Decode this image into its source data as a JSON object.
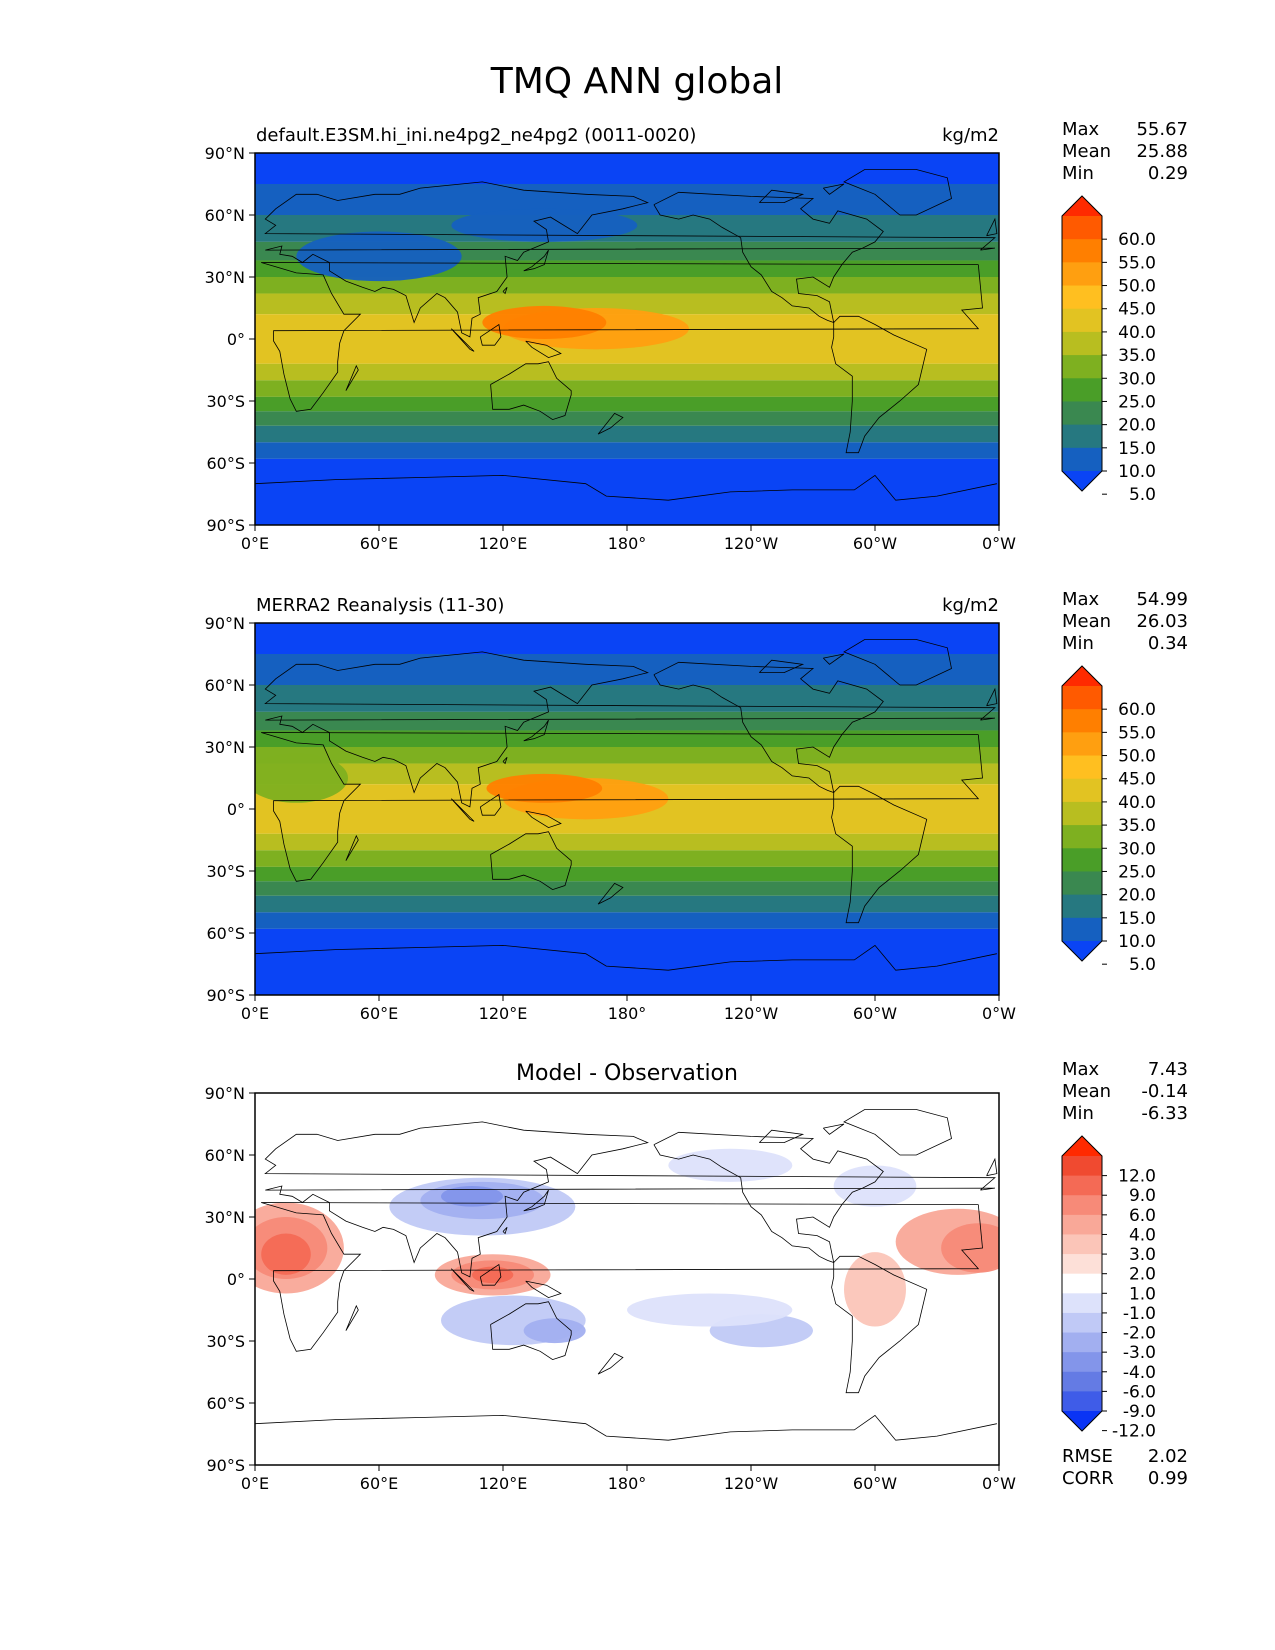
{
  "figure": {
    "title": "TMQ ANN global"
  },
  "axes": {
    "lat_ticks": [
      "90°N",
      "60°N",
      "30°N",
      "0°",
      "30°S",
      "60°S",
      "90°S"
    ],
    "lon_ticks": [
      "0°E",
      "60°E",
      "120°E",
      "180°",
      "120°W",
      "60°W",
      "0°W"
    ]
  },
  "panels": [
    {
      "id": "model",
      "title_left": "default.E3SM.hi_ini.ne4pg2_ne4pg2 (0011-0020)",
      "title_center": "",
      "units": "kg/m2",
      "stats": [
        {
          "label": "Max",
          "value": "55.67"
        },
        {
          "label": "Mean",
          "value": "25.88"
        },
        {
          "label": "Min",
          "value": "0.29"
        }
      ],
      "colorbar": {
        "levels": [
          "60.0",
          "55.0",
          "50.0",
          "45.0",
          "40.0",
          "35.0",
          "30.0",
          "25.0",
          "20.0",
          "15.0",
          "10.0",
          "5.0"
        ],
        "colors": [
          "#ff2a00",
          "#ff5a00",
          "#ff7f00",
          "#ff9f10",
          "#ffbf20",
          "#e2c322",
          "#b8be20",
          "#7eb020",
          "#4a9e28",
          "#3a8850",
          "#267880",
          "#1560c0",
          "#0a44f5"
        ]
      },
      "field": [
        {
          "lat_min": 75,
          "lat_max": 90,
          "level": 12
        },
        {
          "lat_min": 60,
          "lat_max": 75,
          "level": 11
        },
        {
          "lat_min": 47,
          "lat_max": 60,
          "level": 10
        },
        {
          "lat_min": 38,
          "lat_max": 47,
          "level": 9
        },
        {
          "lat_min": 30,
          "lat_max": 38,
          "level": 8
        },
        {
          "lat_min": 22,
          "lat_max": 30,
          "level": 7
        },
        {
          "lat_min": 12,
          "lat_max": 22,
          "level": 6
        },
        {
          "lat_min": -12,
          "lat_max": 12,
          "level": 5
        },
        {
          "lat_min": -20,
          "lat_max": -12,
          "level": 6
        },
        {
          "lat_min": -28,
          "lat_max": -20,
          "level": 7
        },
        {
          "lat_min": -35,
          "lat_max": -28,
          "level": 8
        },
        {
          "lat_min": -42,
          "lat_max": -35,
          "level": 9
        },
        {
          "lat_min": -50,
          "lat_max": -42,
          "level": 10
        },
        {
          "lat_min": -58,
          "lat_max": -50,
          "level": 11
        },
        {
          "lat_min": -90,
          "lat_max": -58,
          "level": 12
        }
      ],
      "features": [
        {
          "lon": 165,
          "lat": 5,
          "rx": 45,
          "ry": 10,
          "level": 3
        },
        {
          "lon": 140,
          "lat": 8,
          "rx": 30,
          "ry": 8,
          "level": 2
        },
        {
          "lon": 60,
          "lat": 40,
          "rx": 40,
          "ry": 12,
          "level": 11
        },
        {
          "lon": 140,
          "lat": 55,
          "rx": 45,
          "ry": 8,
          "level": 11
        }
      ]
    },
    {
      "id": "obs",
      "title_left": "MERRA2 Reanalysis (11-30)",
      "title_center": "",
      "units": "kg/m2",
      "stats": [
        {
          "label": "Max",
          "value": "54.99"
        },
        {
          "label": "Mean",
          "value": "26.03"
        },
        {
          "label": "Min",
          "value": "0.34"
        }
      ],
      "colorbar": {
        "levels": [
          "60.0",
          "55.0",
          "50.0",
          "45.0",
          "40.0",
          "35.0",
          "30.0",
          "25.0",
          "20.0",
          "15.0",
          "10.0",
          "5.0"
        ],
        "colors": [
          "#ff2a00",
          "#ff5a00",
          "#ff7f00",
          "#ff9f10",
          "#ffbf20",
          "#e2c322",
          "#b8be20",
          "#7eb020",
          "#4a9e28",
          "#3a8850",
          "#267880",
          "#1560c0",
          "#0a44f5"
        ]
      },
      "field": [
        {
          "lat_min": 75,
          "lat_max": 90,
          "level": 12
        },
        {
          "lat_min": 60,
          "lat_max": 75,
          "level": 11
        },
        {
          "lat_min": 47,
          "lat_max": 60,
          "level": 10
        },
        {
          "lat_min": 38,
          "lat_max": 47,
          "level": 9
        },
        {
          "lat_min": 30,
          "lat_max": 38,
          "level": 8
        },
        {
          "lat_min": 22,
          "lat_max": 30,
          "level": 7
        },
        {
          "lat_min": 12,
          "lat_max": 22,
          "level": 6
        },
        {
          "lat_min": -12,
          "lat_max": 12,
          "level": 5
        },
        {
          "lat_min": -20,
          "lat_max": -12,
          "level": 6
        },
        {
          "lat_min": -28,
          "lat_max": -20,
          "level": 7
        },
        {
          "lat_min": -35,
          "lat_max": -28,
          "level": 8
        },
        {
          "lat_min": -42,
          "lat_max": -35,
          "level": 9
        },
        {
          "lat_min": -50,
          "lat_max": -42,
          "level": 10
        },
        {
          "lat_min": -58,
          "lat_max": -50,
          "level": 11
        },
        {
          "lat_min": -90,
          "lat_max": -58,
          "level": 12
        }
      ],
      "features": [
        {
          "lon": 160,
          "lat": 5,
          "rx": 40,
          "ry": 10,
          "level": 3
        },
        {
          "lon": 140,
          "lat": 10,
          "rx": 28,
          "ry": 7,
          "level": 2
        },
        {
          "lon": 20,
          "lat": 15,
          "rx": 25,
          "ry": 12,
          "level": 7
        }
      ]
    },
    {
      "id": "diff",
      "title_left": "",
      "title_center": "Model - Observation",
      "units": "",
      "stats": [
        {
          "label": "Max",
          "value": "7.43"
        },
        {
          "label": "Mean",
          "value": "-0.14"
        },
        {
          "label": "Min",
          "value": "-6.33"
        }
      ],
      "extra_stats": [
        {
          "label": "RMSE",
          "value": "2.02"
        },
        {
          "label": "CORR",
          "value": "0.99"
        }
      ],
      "colorbar": {
        "levels": [
          "12.0",
          "9.0",
          "6.0",
          "4.0",
          "3.0",
          "2.0",
          "1.0",
          "-1.0",
          "-2.0",
          "-3.0",
          "-4.0",
          "-6.0",
          "-9.0",
          "-12.0"
        ],
        "colors": [
          "#ff2a00",
          "#f04a30",
          "#f46a55",
          "#f78a78",
          "#f9a898",
          "#fbc5b8",
          "#fde0d8",
          "#ffffff",
          "#dde2fb",
          "#c0c9f6",
          "#a2aff0",
          "#8395ea",
          "#647be4",
          "#3f5ce8",
          "#0a34f5"
        ]
      },
      "field": [],
      "features": [
        {
          "lon": 15,
          "lat": 15,
          "rx": 28,
          "ry": 22,
          "level": 4
        },
        {
          "lon": 15,
          "lat": 15,
          "rx": 20,
          "ry": 15,
          "level": 3
        },
        {
          "lon": 15,
          "lat": 12,
          "rx": 12,
          "ry": 10,
          "level": 2
        },
        {
          "lon": 340,
          "lat": 18,
          "rx": 30,
          "ry": 16,
          "level": 4
        },
        {
          "lon": 350,
          "lat": 15,
          "rx": 18,
          "ry": 12,
          "level": 3
        },
        {
          "lon": 115,
          "lat": 2,
          "rx": 28,
          "ry": 10,
          "level": 4
        },
        {
          "lon": 115,
          "lat": 2,
          "rx": 20,
          "ry": 7,
          "level": 3
        },
        {
          "lon": 115,
          "lat": 2,
          "rx": 10,
          "ry": 4,
          "level": 2
        },
        {
          "lon": 110,
          "lat": 35,
          "rx": 45,
          "ry": 14,
          "level": 9
        },
        {
          "lon": 110,
          "lat": 38,
          "rx": 30,
          "ry": 9,
          "level": 10
        },
        {
          "lon": 105,
          "lat": 40,
          "rx": 15,
          "ry": 5,
          "level": 11
        },
        {
          "lon": 125,
          "lat": -20,
          "rx": 35,
          "ry": 12,
          "level": 9
        },
        {
          "lon": 145,
          "lat": -25,
          "rx": 15,
          "ry": 6,
          "level": 10
        },
        {
          "lon": 245,
          "lat": -25,
          "rx": 25,
          "ry": 8,
          "level": 9
        },
        {
          "lon": 300,
          "lat": -5,
          "rx": 15,
          "ry": 18,
          "level": 5
        },
        {
          "lon": 300,
          "lat": 45,
          "rx": 20,
          "ry": 10,
          "level": 8
        },
        {
          "lon": 230,
          "lat": 55,
          "rx": 30,
          "ry": 8,
          "level": 8
        },
        {
          "lon": 220,
          "lat": -15,
          "rx": 40,
          "ry": 8,
          "level": 8
        }
      ]
    }
  ]
}
